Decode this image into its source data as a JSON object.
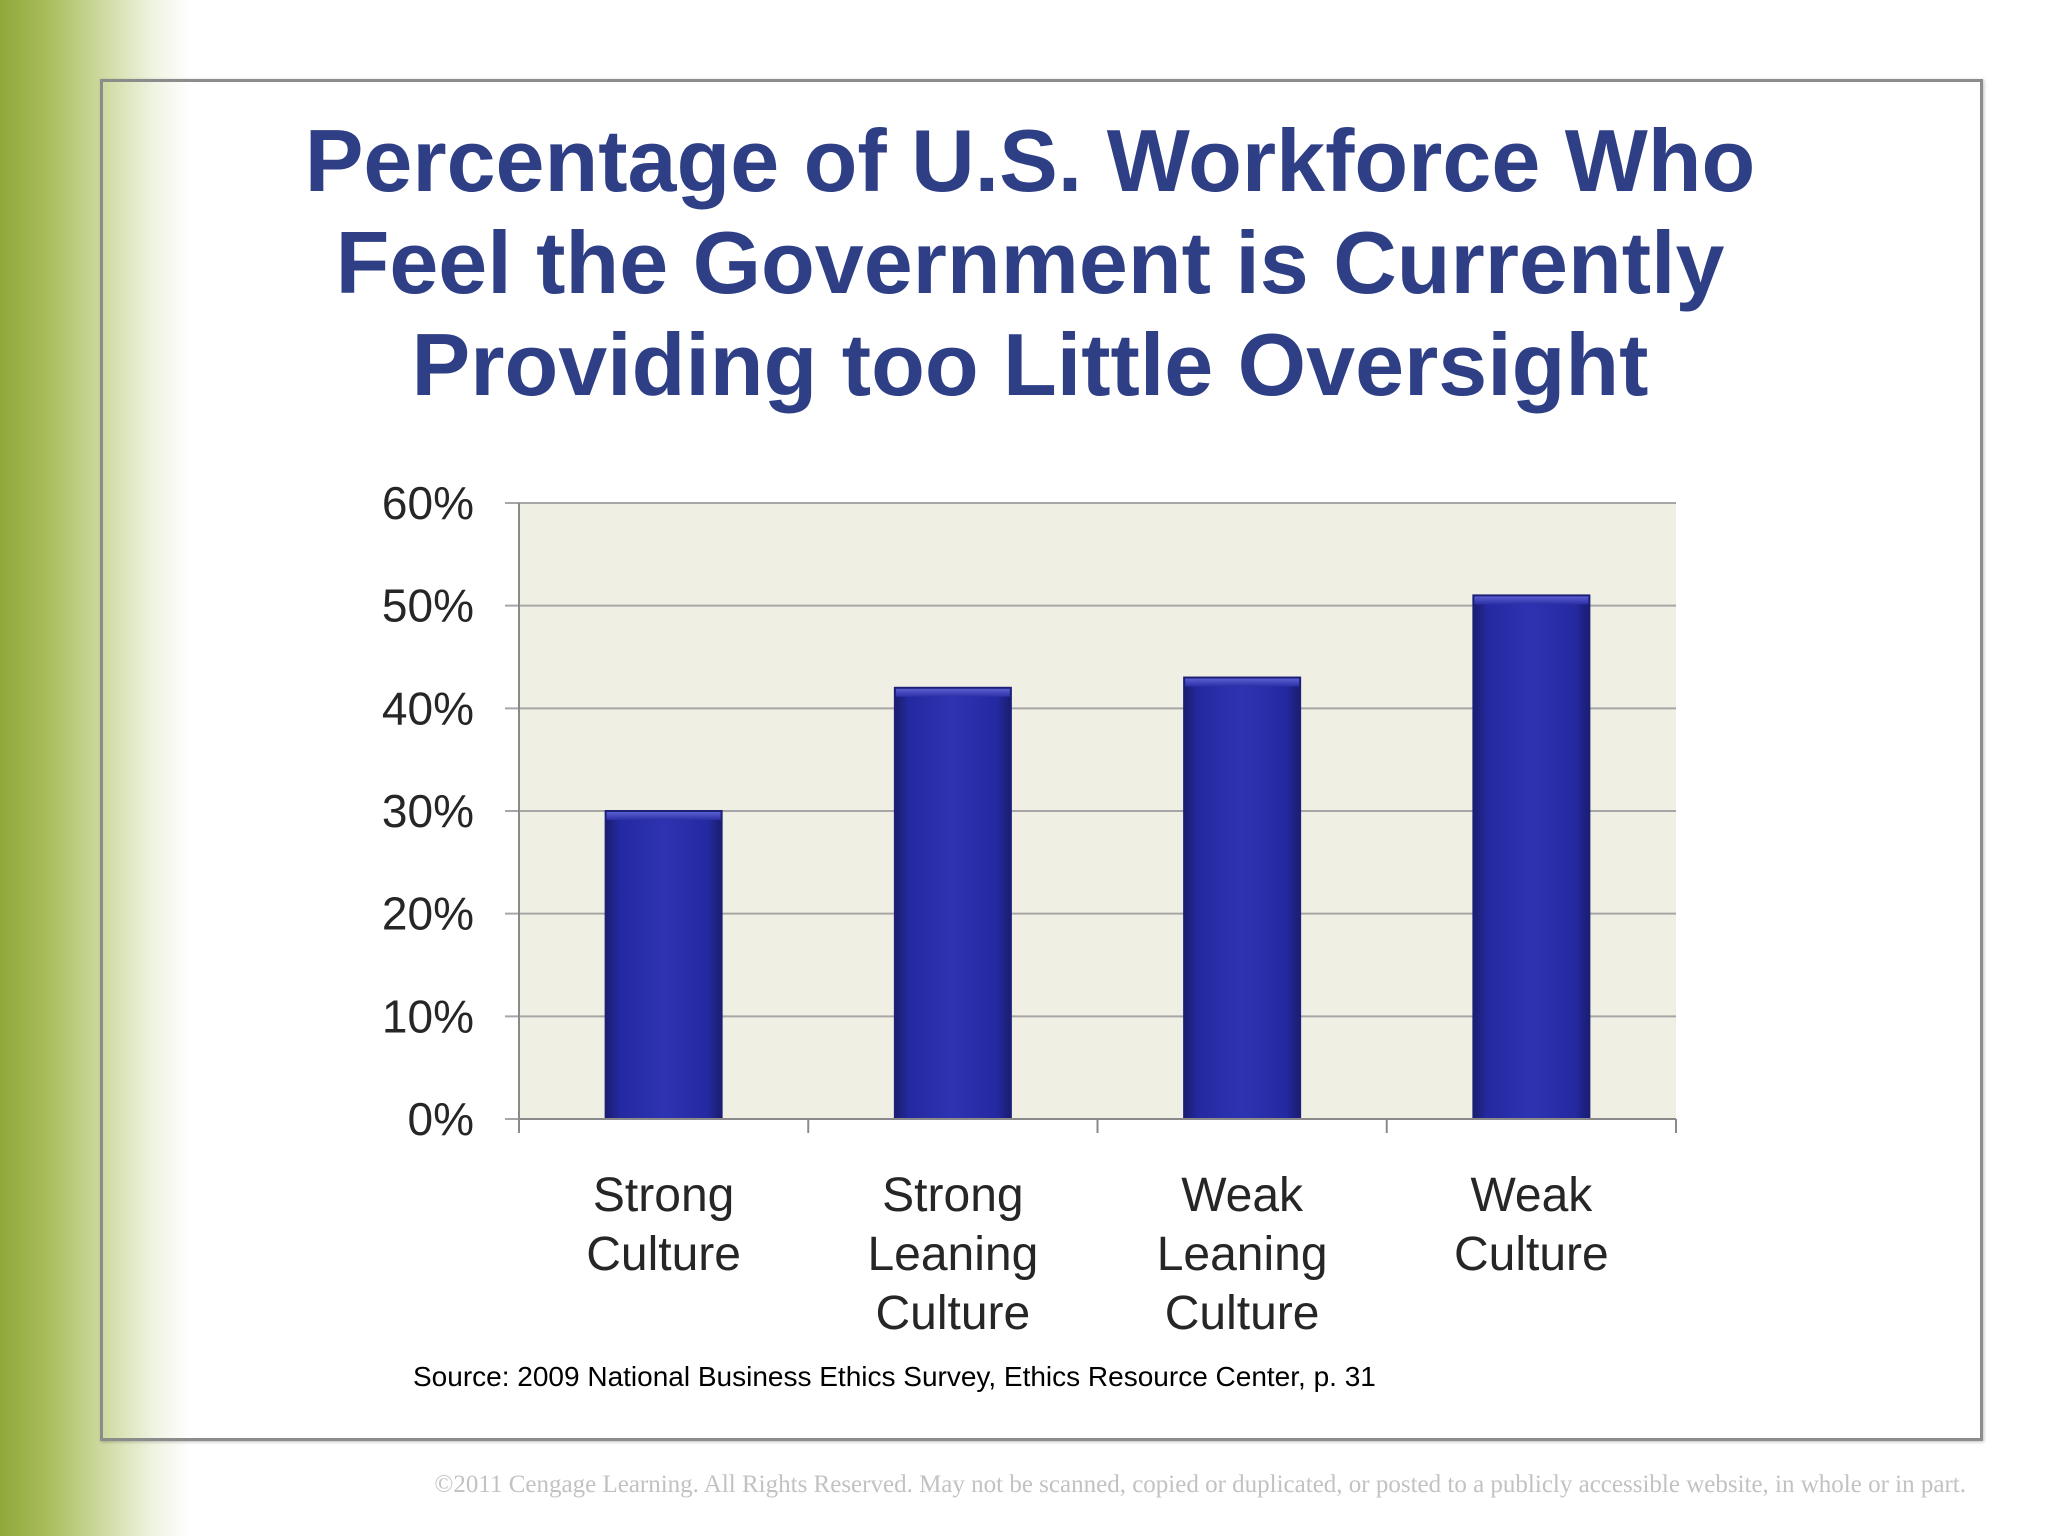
{
  "slide": {
    "title": "Percentage of U.S. Workforce Who\nFeel the Government is Currently\nProviding too Little Oversight",
    "source": "Source: 2009 National Business Ethics Survey, Ethics Resource Center, p. 31",
    "copyright": "©2011 Cengage Learning. All Rights Reserved. May not be scanned, copied or duplicated, or posted to a publicly accessible website, in whole or in part."
  },
  "colors": {
    "title": "#2e3f86",
    "bar": "#2a2fa6",
    "bar_dark": "#1c1f78",
    "plot_background": "#efefe4",
    "gridline": "#a6a6a6",
    "left_band": "#8fa83a"
  },
  "chart_data": {
    "type": "bar",
    "categories": [
      [
        "Strong",
        "Culture"
      ],
      [
        "Strong",
        "Leaning",
        "Culture"
      ],
      [
        "Weak",
        "Leaning",
        "Culture"
      ],
      [
        "Weak",
        "Culture"
      ]
    ],
    "values": [
      30,
      42,
      43,
      51
    ],
    "ylim": [
      0,
      60
    ],
    "yticks": [
      0,
      10,
      20,
      30,
      40,
      50,
      60
    ],
    "ytick_labels": [
      "0%",
      "10%",
      "20%",
      "30%",
      "40%",
      "50%",
      "60%"
    ],
    "grid": true,
    "legend": "none"
  }
}
